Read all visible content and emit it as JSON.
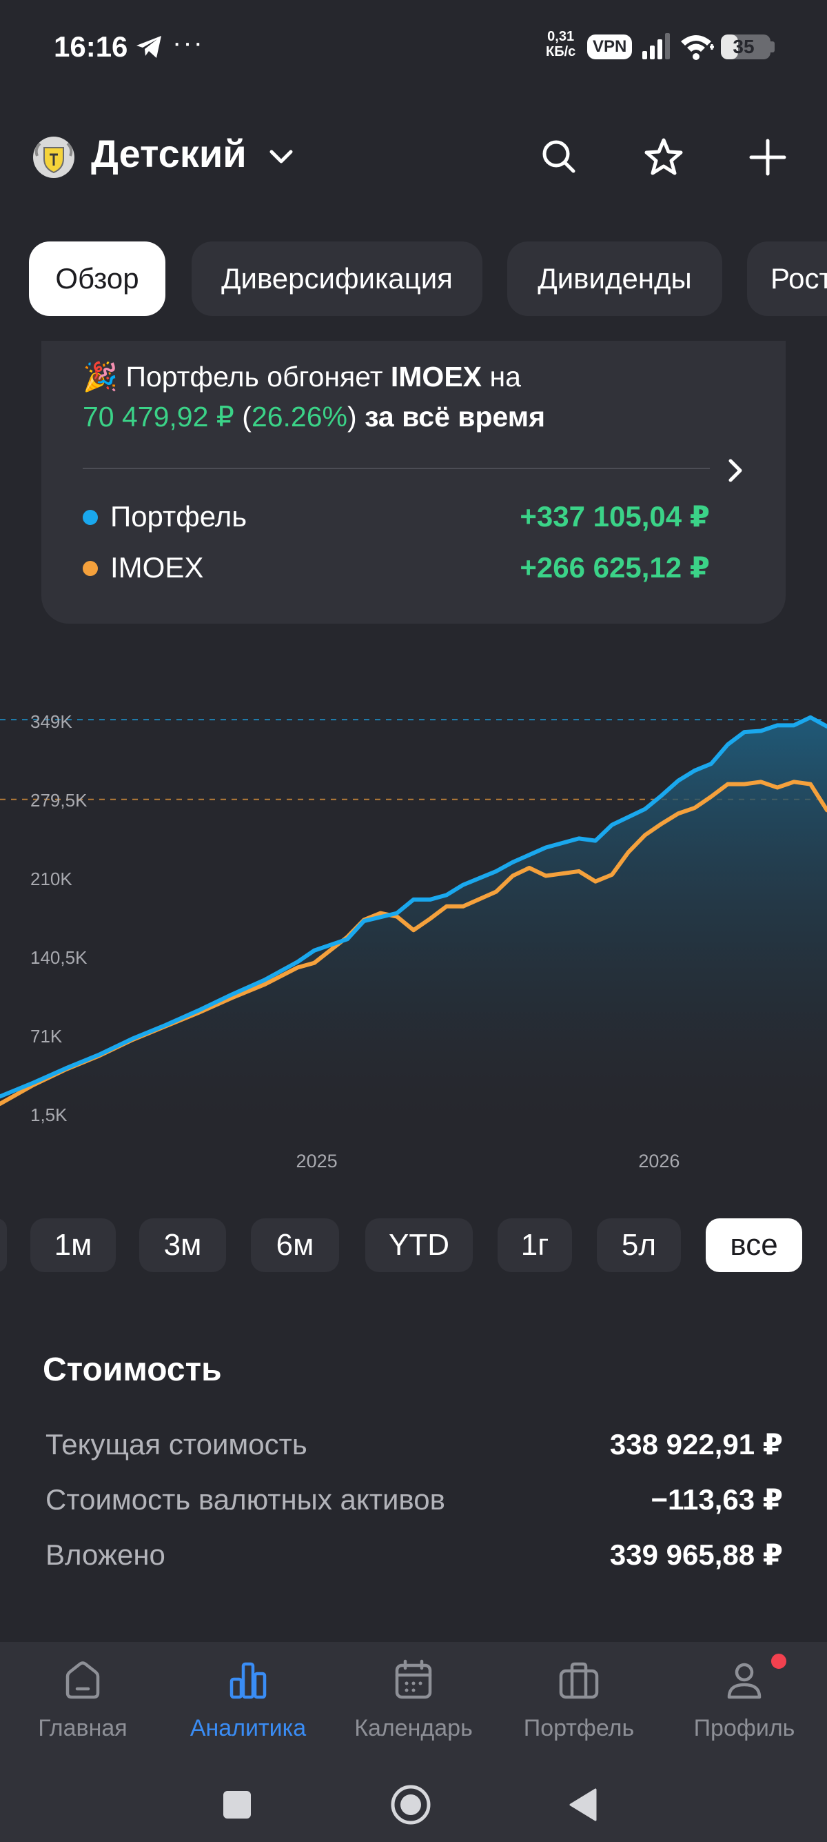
{
  "status_bar": {
    "time": "16:16",
    "dots": "···",
    "net_speed_value": "0,31",
    "net_speed_unit": "КБ/с",
    "vpn": "VPN",
    "battery": "35",
    "battery_level": 0.35,
    "icons": [
      "telegram-icon",
      "signal-icon",
      "wifi-icon",
      "battery-icon"
    ]
  },
  "header": {
    "title": "Детский",
    "icons": [
      "logo-icon",
      "chevron-down-icon",
      "search-icon",
      "star-icon",
      "plus-icon"
    ]
  },
  "tabs": [
    "Обзор",
    "Диверсификация",
    "Дивиденды",
    "Рост"
  ],
  "comparison": {
    "emoji": "🎉",
    "text_start": "Портфель обгоняет",
    "index_name": "IMOEX",
    "text_on": "на",
    "amount": "70 479,92 ₽",
    "paren_open": "(",
    "percent": "26.26%",
    "paren_close": ")",
    "suffix": "за всё время",
    "rows": [
      {
        "label": "Портфель",
        "value": "+337 105,04 ₽",
        "color": "#1aa8ee"
      },
      {
        "label": "IMOEX",
        "value": "+266 625,12 ₽",
        "color": "#f5a13c"
      }
    ]
  },
  "chart_data": {
    "type": "line",
    "y_tick_labels": [
      "349K",
      "279,5K",
      "210K",
      "140,5K",
      "71K",
      "1,5K"
    ],
    "y_ticks": [
      349000,
      279500,
      210000,
      140500,
      71000,
      1500
    ],
    "ylim": [
      1500,
      349000
    ],
    "x_tick_labels": [
      "2025",
      "2026"
    ],
    "x_tick_positions": [
      0.383,
      0.797
    ],
    "reference_lines": [
      {
        "name": "Портфель",
        "value": 341000,
        "color": "#1aa8ee"
      },
      {
        "name": "IMOEX",
        "value": 270500,
        "color": "#f5a13c"
      }
    ],
    "series": [
      {
        "name": "Портфель",
        "color": "#1aa8ee",
        "x": [
          0,
          0.04,
          0.08,
          0.12,
          0.16,
          0.2,
          0.24,
          0.28,
          0.32,
          0.36,
          0.38,
          0.42,
          0.44,
          0.48,
          0.5,
          0.52,
          0.54,
          0.56,
          0.6,
          0.62,
          0.66,
          0.7,
          0.72,
          0.74,
          0.76,
          0.78,
          0.8,
          0.82,
          0.84,
          0.86,
          0.88,
          0.9,
          0.92,
          0.94,
          0.96,
          0.98,
          1.0
        ],
        "values": [
          8000,
          20000,
          33000,
          45000,
          59000,
          71000,
          84000,
          98000,
          111000,
          127000,
          137000,
          147000,
          163000,
          170000,
          182000,
          182000,
          186000,
          195000,
          207000,
          215000,
          228000,
          236000,
          234000,
          248000,
          255000,
          262000,
          274000,
          287000,
          296000,
          302000,
          319000,
          330000,
          331000,
          336000,
          336000,
          343000,
          335000
        ]
      },
      {
        "name": "IMOEX",
        "color": "#f5a13c",
        "x": [
          0,
          0.04,
          0.08,
          0.12,
          0.16,
          0.2,
          0.24,
          0.28,
          0.32,
          0.36,
          0.38,
          0.42,
          0.44,
          0.46,
          0.48,
          0.5,
          0.52,
          0.54,
          0.56,
          0.6,
          0.62,
          0.64,
          0.66,
          0.7,
          0.72,
          0.74,
          0.76,
          0.78,
          0.8,
          0.82,
          0.84,
          0.86,
          0.88,
          0.9,
          0.92,
          0.94,
          0.96,
          0.98,
          1.0
        ],
        "values": [
          1500,
          18000,
          32000,
          44000,
          58000,
          70000,
          82000,
          95000,
          107000,
          122000,
          126000,
          149000,
          164000,
          170000,
          167000,
          155000,
          165000,
          176000,
          176000,
          189000,
          203000,
          210000,
          203000,
          207000,
          198000,
          204000,
          224000,
          239000,
          249000,
          258000,
          263000,
          273000,
          284000,
          284000,
          286000,
          281000,
          286000,
          284000,
          261000
        ]
      }
    ]
  },
  "periods": {
    "items": [
      "1м",
      "3м",
      "6м",
      "YTD",
      "1г",
      "5л",
      "все"
    ],
    "selected": "все"
  },
  "value_section": {
    "title": "Стоимость",
    "rows": [
      {
        "label": "Текущая стоимость",
        "value": "338 922,91 ₽"
      },
      {
        "label": "Стоимость валютных активов",
        "value": "−113,63 ₽"
      },
      {
        "label": "Вложено",
        "value": "339 965,88 ₽"
      }
    ]
  },
  "bottom_nav": {
    "items": [
      {
        "label": "Главная",
        "icon": "home-icon"
      },
      {
        "label": "Аналитика",
        "icon": "analytics-icon",
        "active": true
      },
      {
        "label": "Календарь",
        "icon": "calendar-icon"
      },
      {
        "label": "Портфель",
        "icon": "briefcase-icon"
      },
      {
        "label": "Профиль",
        "icon": "profile-icon",
        "badge": true
      }
    ],
    "accent": "#3a8df5",
    "badge_color": "#f2414f"
  },
  "system_nav": [
    "recents-square-icon",
    "home-circle-icon",
    "back-triangle-icon"
  ]
}
